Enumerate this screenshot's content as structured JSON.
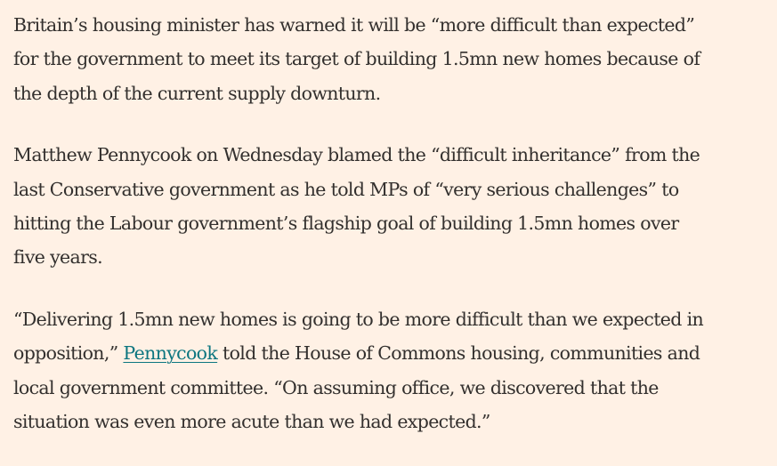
{
  "article": {
    "paragraphs": [
      {
        "lines": [
          "Britain’s housing minister has warned it will be “more difficult than expected”",
          "for the government to meet its target of building 1.5mn new homes because of",
          "the depth of the current supply downturn."
        ]
      },
      {
        "lines": [
          "Matthew Pennycook on Wednesday blamed the “difficult inheritance” from the",
          "last Conservative government as he told MPs of “very serious challenges” to",
          "hitting the Labour government’s flagship goal of building 1.5mn homes over",
          "five years."
        ]
      },
      {
        "line1": "“Delivering 1.5mn new homes is going to be more difficult than we expected in",
        "line2_before_link": "opposition,” ",
        "link_text": "Pennycook",
        "line2_after_link": " told the House of Commons housing, communities and",
        "line3": "local government committee. “On assuming office, we discovered that the",
        "line4": "situation was even more acute than we had expected.”"
      }
    ],
    "link_color": "#0d7680",
    "background_color": "#fff1e5",
    "text_color": "#33302e"
  }
}
